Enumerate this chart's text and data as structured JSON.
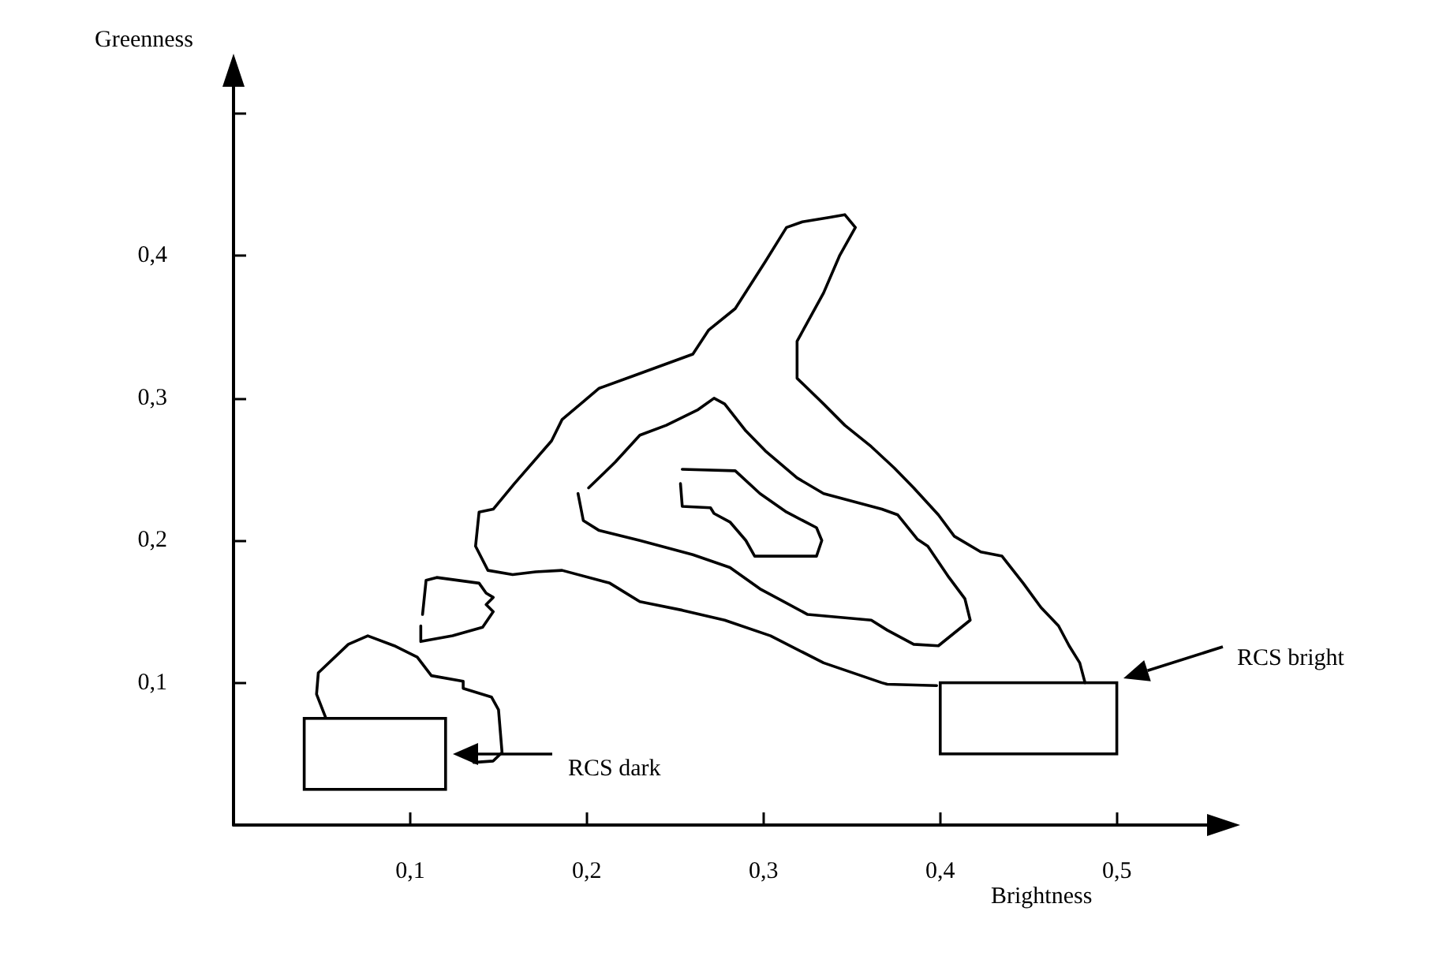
{
  "chart_data": {
    "type": "line",
    "xlabel": "Brightness",
    "ylabel": "Greenness",
    "xlim": [
      0,
      0.56
    ],
    "ylim": [
      0,
      0.53
    ],
    "xticks": [
      {
        "value": 0.1,
        "label": "0,1"
      },
      {
        "value": 0.2,
        "label": "0,2"
      },
      {
        "value": 0.3,
        "label": "0,3"
      },
      {
        "value": 0.4,
        "label": "0,4"
      },
      {
        "value": 0.5,
        "label": "0,5"
      }
    ],
    "yticks": [
      {
        "value": 0.1,
        "label": "0,1"
      },
      {
        "value": 0.2,
        "label": "0,2"
      },
      {
        "value": 0.3,
        "label": "0,3"
      },
      {
        "value": 0.4,
        "label": "0,4"
      },
      {
        "value": 0.5,
        "label": null
      }
    ],
    "grid": false,
    "marker": "none",
    "line_style": "solid",
    "series": [
      {
        "color": "#000000",
        "x": [
          0.398,
          0.37,
          0.367,
          0.334,
          0.304,
          0.278,
          0.254,
          0.23,
          0.213,
          0.186,
          0.171,
          0.158,
          0.144,
          0.137,
          0.139,
          0.147,
          0.159,
          0.18,
          0.186,
          0.207,
          0.227,
          0.26,
          0.269,
          0.284,
          0.301,
          0.313,
          0.322,
          0.337,
          0.346,
          0.352,
          0.343,
          0.334,
          0.319,
          0.319,
          0.334,
          0.346,
          0.361,
          0.374,
          0.385,
          0.399,
          0.408,
          0.423,
          0.435,
          0.447,
          0.457,
          0.467,
          0.473,
          0.479,
          0.482
        ],
        "values": [
          0.098,
          0.099,
          0.1,
          0.114,
          0.133,
          0.144,
          0.151,
          0.157,
          0.17,
          0.179,
          0.178,
          0.176,
          0.179,
          0.196,
          0.22,
          0.222,
          0.24,
          0.27,
          0.285,
          0.307,
          0.316,
          0.331,
          0.348,
          0.363,
          0.396,
          0.42,
          0.424,
          0.427,
          0.429,
          0.42,
          0.4,
          0.374,
          0.34,
          0.314,
          0.296,
          0.281,
          0.266,
          0.251,
          0.237,
          0.218,
          0.203,
          0.192,
          0.189,
          0.17,
          0.153,
          0.14,
          0.126,
          0.114,
          0.1
        ]
      },
      {
        "color": "#000000",
        "x": [
          0.195,
          0.198,
          0.207,
          0.23,
          0.26,
          0.281,
          0.298,
          0.325,
          0.361,
          0.37,
          0.385,
          0.399,
          0.417,
          0.414,
          0.405,
          0.393,
          0.387,
          0.376,
          0.367,
          0.334,
          0.319,
          0.301,
          0.29,
          0.278,
          0.272,
          0.263,
          0.245,
          0.23,
          0.216,
          0.201
        ],
        "values": [
          0.233,
          0.214,
          0.207,
          0.2,
          0.19,
          0.181,
          0.166,
          0.148,
          0.144,
          0.137,
          0.127,
          0.126,
          0.144,
          0.159,
          0.174,
          0.196,
          0.201,
          0.218,
          0.222,
          0.233,
          0.244,
          0.263,
          0.277,
          0.296,
          0.3,
          0.292,
          0.281,
          0.274,
          0.255,
          0.237
        ]
      },
      {
        "color": "#000000",
        "x": [
          0.254,
          0.284,
          0.298,
          0.313,
          0.33,
          0.333,
          0.33,
          0.295,
          0.29,
          0.281,
          0.272,
          0.27,
          0.254,
          0.253
        ],
        "values": [
          0.25,
          0.249,
          0.233,
          0.22,
          0.209,
          0.2,
          0.189,
          0.189,
          0.2,
          0.213,
          0.219,
          0.223,
          0.224,
          0.24
        ]
      },
      {
        "color": "#000000",
        "x": [
          0.107,
          0.109,
          0.115,
          0.139,
          0.143,
          0.147,
          0.143,
          0.147,
          0.141,
          0.124,
          0.106,
          0.106
        ],
        "values": [
          0.148,
          0.172,
          0.174,
          0.17,
          0.163,
          0.16,
          0.155,
          0.15,
          0.139,
          0.133,
          0.129,
          0.14
        ]
      },
      {
        "color": "#000000",
        "x": [
          0.052,
          0.047,
          0.048,
          0.065,
          0.076,
          0.091,
          0.104,
          0.112,
          0.13,
          0.13,
          0.146,
          0.15,
          0.152,
          0.147,
          0.136
        ],
        "values": [
          0.076,
          0.092,
          0.107,
          0.127,
          0.133,
          0.126,
          0.118,
          0.105,
          0.101,
          0.096,
          0.09,
          0.081,
          0.051,
          0.045,
          0.044
        ]
      }
    ],
    "annotations": [
      "RCS dark",
      "RCS bright"
    ]
  }
}
